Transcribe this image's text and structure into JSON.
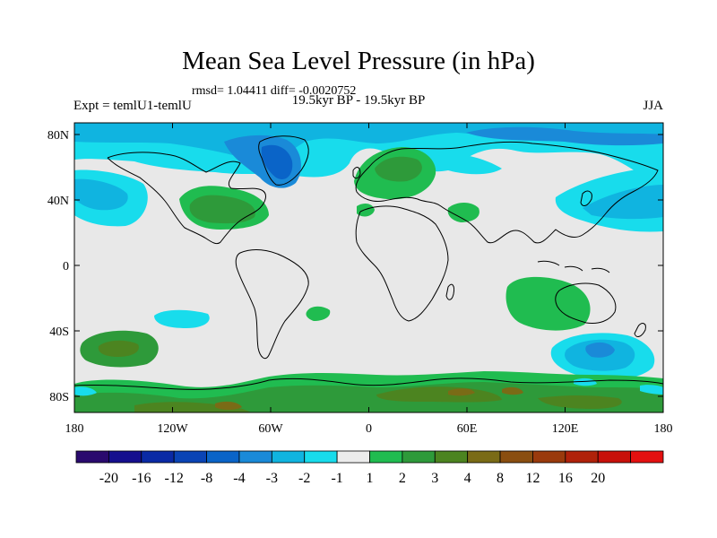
{
  "title": "Mean Sea Level Pressure (in hPa)",
  "stats": "rmsd= 1.04411 diff= -0.0020752",
  "experiment": "Expt = temlU1-temlU",
  "period": "19.5kyr BP - 19.5kyr BP",
  "season": "JJA",
  "x_ticks": [
    "180",
    "120W",
    "60W",
    "0",
    "60E",
    "120E",
    "180"
  ],
  "y_ticks": [
    "80N",
    "40N",
    "0",
    "40S",
    "80S"
  ],
  "colorbar": {
    "colors": [
      "#2a0a6e",
      "#150f8e",
      "#0a2aa5",
      "#0a44b5",
      "#0a64c8",
      "#1a8ad8",
      "#10b4e0",
      "#18dcec",
      "#ececec",
      "#20bc50",
      "#2e9a3a",
      "#4c8420",
      "#7a6b16",
      "#8a4e10",
      "#9a3a0c",
      "#b0220a",
      "#c8100a",
      "#e41010"
    ],
    "labels": [
      "-20",
      "-16",
      "-12",
      "-8",
      "-4",
      "-3",
      "-2",
      "-1",
      "1",
      "2",
      "3",
      "4",
      "8",
      "12",
      "16",
      "20"
    ]
  },
  "legend_colors": {
    "neutral": "#e8e8e8",
    "light_blue": "#18dcec",
    "mid_blue": "#10b4e0",
    "blue": "#1a8ad8",
    "dark_blue": "#0a64c8",
    "green": "#20bc50",
    "mid_green": "#2e9a3a",
    "olive": "#4c8420",
    "brown": "#7a6b16"
  }
}
